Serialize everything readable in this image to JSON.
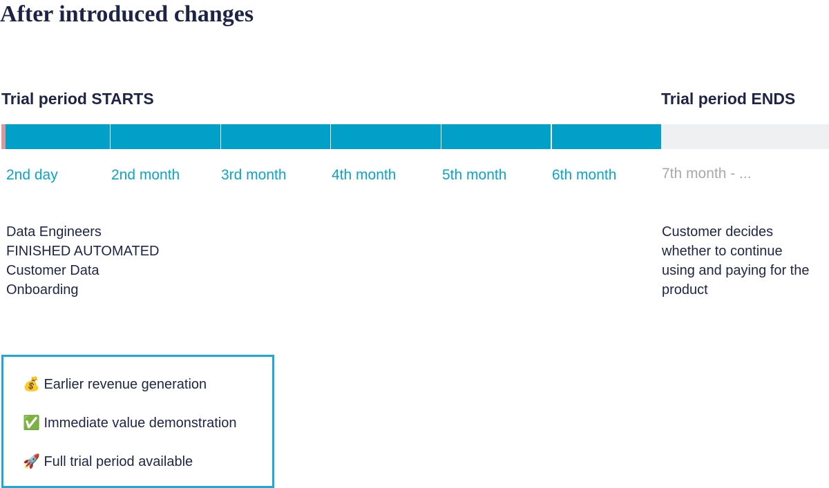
{
  "header": {
    "title": "After introduced changes"
  },
  "timeline": {
    "start_label": "Trial period STARTS",
    "end_label": "Trial period ENDS",
    "periods": [
      "2nd day",
      "2nd month",
      "3rd month",
      "4th month",
      "5th month",
      "6th month"
    ],
    "after_period": "7th month - ...",
    "start_note": [
      "Data Engineers",
      "FINISHED AUTOMATED",
      "Customer Data",
      "Onboarding"
    ],
    "end_note": [
      "Customer decides",
      "whether to continue",
      "using and paying for the",
      "product"
    ]
  },
  "benefits": [
    {
      "icon": "💰",
      "text": "Earlier revenue generation"
    },
    {
      "icon": "✅",
      "text": "Immediate value demonstration"
    },
    {
      "icon": "🚀",
      "text": "Full trial period available"
    }
  ]
}
